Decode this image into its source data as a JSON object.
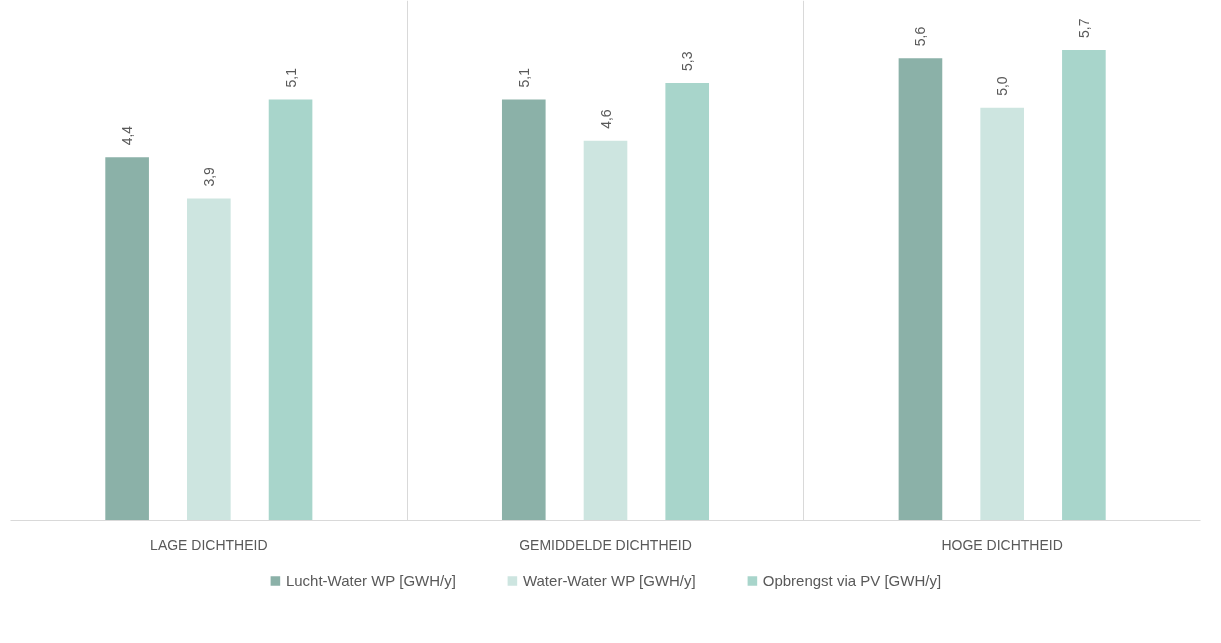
{
  "chart_data": {
    "type": "bar",
    "categories": [
      "LAGE DICHTHEID",
      "GEMIDDELDE DICHTHEID",
      "HOGE DICHTHEID"
    ],
    "series": [
      {
        "name": "Lucht-Water WP [GWH/y]",
        "color": "#8bb1a8",
        "values": [
          4.4,
          5.1,
          5.6
        ],
        "value_labels": [
          "4,4",
          "5,1",
          "5,6"
        ]
      },
      {
        "name": "Water-Water WP [GWH/y]",
        "color": "#cde5e0",
        "values": [
          3.9,
          4.6,
          5.0
        ],
        "value_labels": [
          "3,9",
          "4,6",
          "5,0"
        ]
      },
      {
        "name": "Opbrengst via PV [GWH/y]",
        "color": "#a8d5cb",
        "values": [
          5.1,
          5.3,
          5.7
        ],
        "value_labels": [
          "5,1",
          "5,3",
          "5,7"
        ]
      }
    ],
    "ylim": [
      0,
      6.3
    ],
    "grid": "x",
    "legend": "bottom"
  }
}
